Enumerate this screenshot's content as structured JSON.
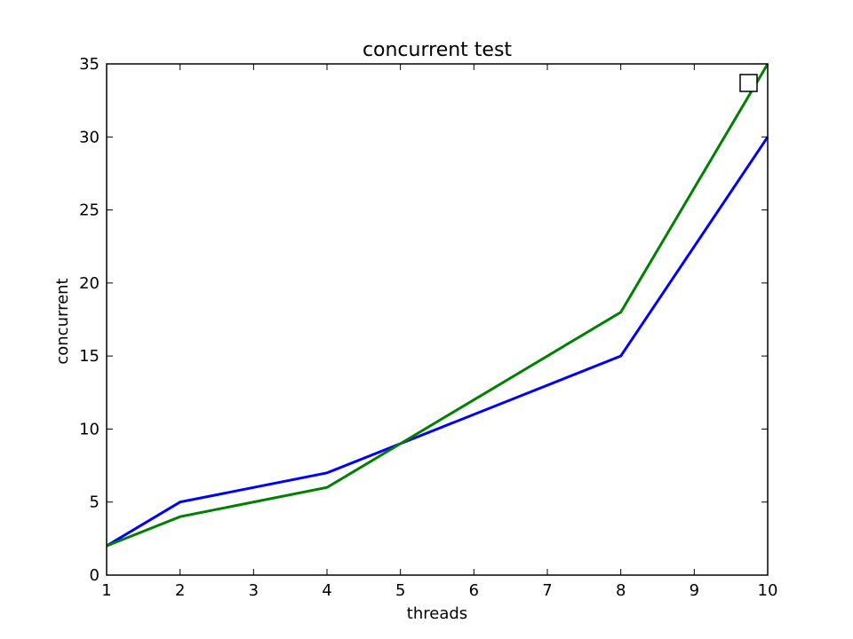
{
  "chart_data": {
    "type": "line",
    "title": "concurrent test",
    "xlabel": "threads",
    "ylabel": "concurrent",
    "xlim": [
      1,
      10
    ],
    "ylim": [
      0,
      35
    ],
    "xticks": [
      1,
      2,
      3,
      4,
      5,
      6,
      7,
      8,
      9,
      10
    ],
    "yticks": [
      0,
      5,
      10,
      15,
      20,
      25,
      30,
      35
    ],
    "grid": false,
    "legend": "top-right, empty box",
    "series": [
      {
        "color": "#0000ff",
        "x": [
          1,
          2,
          4,
          5,
          8,
          10
        ],
        "y": [
          2,
          5,
          7,
          9,
          15,
          30
        ]
      },
      {
        "color": "#008000",
        "x": [
          1,
          2,
          4,
          5,
          8,
          10
        ],
        "y": [
          2,
          4,
          6,
          9,
          18,
          35
        ]
      }
    ]
  }
}
